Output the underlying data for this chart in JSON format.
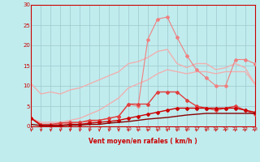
{
  "x": [
    0,
    1,
    2,
    3,
    4,
    5,
    6,
    7,
    8,
    9,
    10,
    11,
    12,
    13,
    14,
    15,
    16,
    17,
    18,
    19,
    20,
    21,
    22,
    23
  ],
  "line_max": [
    10.5,
    8.0,
    8.5,
    8.0,
    9.0,
    9.5,
    10.5,
    11.5,
    12.5,
    13.5,
    15.5,
    16.0,
    17.0,
    18.5,
    19.0,
    15.5,
    14.5,
    15.5,
    15.5,
    14.0,
    14.5,
    15.5,
    14.5,
    10.5
  ],
  "line_avg_smooth": [
    2.0,
    1.0,
    1.0,
    1.0,
    1.5,
    2.0,
    3.0,
    4.0,
    5.5,
    7.0,
    9.5,
    10.5,
    11.5,
    13.0,
    14.0,
    13.5,
    13.0,
    13.5,
    13.5,
    13.0,
    13.5,
    13.5,
    13.5,
    10.5
  ],
  "line_peak": [
    2.0,
    0.5,
    0.5,
    0.5,
    0.8,
    1.0,
    1.2,
    1.5,
    2.0,
    2.5,
    5.5,
    5.0,
    21.5,
    26.5,
    27.0,
    22.0,
    17.5,
    14.0,
    12.0,
    10.0,
    10.0,
    16.5,
    16.5,
    15.5
  ],
  "line_mean": [
    2.0,
    0.5,
    0.5,
    0.8,
    1.0,
    1.0,
    1.5,
    1.5,
    2.0,
    2.5,
    5.5,
    5.5,
    5.5,
    8.5,
    8.5,
    8.5,
    6.5,
    5.0,
    4.5,
    4.0,
    4.5,
    5.0,
    4.0,
    3.0
  ],
  "line_min": [
    2.0,
    0.2,
    0.2,
    0.2,
    0.5,
    0.5,
    0.8,
    1.0,
    1.2,
    1.5,
    2.0,
    2.5,
    3.0,
    3.5,
    4.0,
    4.5,
    4.5,
    4.5,
    4.5,
    4.5,
    4.5,
    4.5,
    4.0,
    3.5
  ],
  "line_base": [
    0.5,
    0.2,
    0.2,
    0.2,
    0.3,
    0.3,
    0.5,
    0.5,
    0.8,
    1.0,
    1.2,
    1.5,
    1.8,
    2.0,
    2.2,
    2.5,
    2.8,
    3.0,
    3.2,
    3.2,
    3.2,
    3.2,
    3.2,
    3.2
  ],
  "color_max": "#f0b0b0",
  "color_avg": "#f0b0b0",
  "color_peak": "#f08080",
  "color_mean": "#e04040",
  "color_min": "#cc0000",
  "color_base": "#880000",
  "bg_color": "#c0ecee",
  "grid_color": "#a0c8cc",
  "arrow_color": "#cc2222",
  "xlabel": "Vent moyen/en rafales ( km/h )",
  "ylim": [
    0,
    30
  ],
  "xlim": [
    0,
    23
  ],
  "yticks": [
    0,
    5,
    10,
    15,
    20,
    25,
    30
  ],
  "xticks": [
    0,
    1,
    2,
    3,
    4,
    5,
    6,
    7,
    8,
    9,
    10,
    11,
    12,
    13,
    14,
    15,
    16,
    17,
    18,
    19,
    20,
    21,
    22,
    23
  ]
}
